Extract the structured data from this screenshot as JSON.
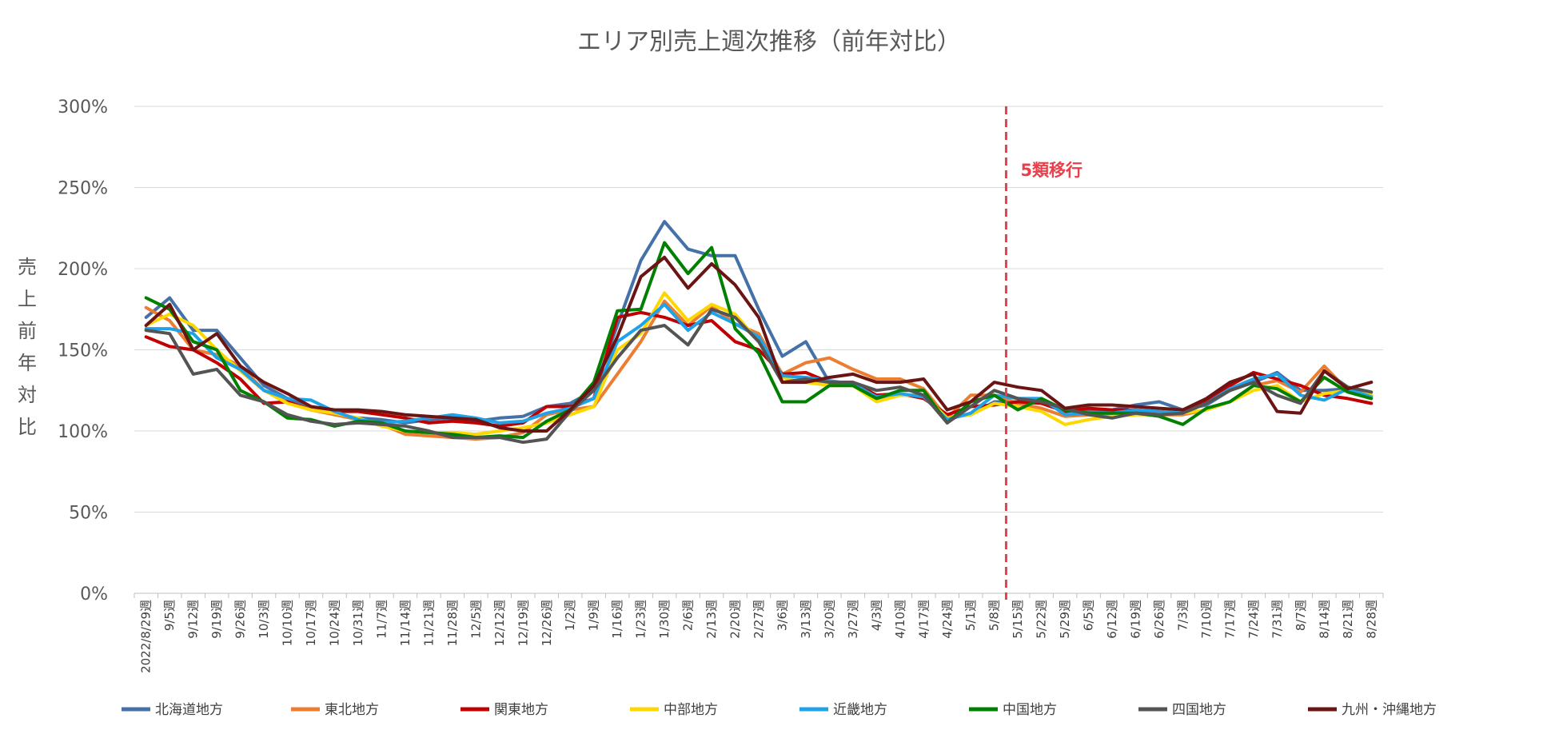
{
  "chart_data": {
    "type": "line",
    "title": "エリア別売上週次推移（前年対比）",
    "ylabel": "売上前年対比",
    "ylim": [
      0,
      300
    ],
    "yticks": [
      "0%",
      "50%",
      "100%",
      "150%",
      "200%",
      "250%",
      "300%"
    ],
    "grid": true,
    "legend_position": "bottom",
    "categories": [
      "2022/8/29週",
      "9/5週",
      "9/12週",
      "9/19週",
      "9/26週",
      "10/3週",
      "10/10週",
      "10/17週",
      "10/24週",
      "10/31週",
      "11/7週",
      "11/14週",
      "11/21週",
      "11/28週",
      "12/5週",
      "12/12週",
      "12/19週",
      "12/26週",
      "1/2週",
      "1/9週",
      "1/16週",
      "1/23週",
      "1/30週",
      "2/6週",
      "2/13週",
      "2/20週",
      "2/27週",
      "3/6週",
      "3/13週",
      "3/20週",
      "3/27週",
      "4/3週",
      "4/10週",
      "4/17週",
      "4/24週",
      "5/1週",
      "5/8週",
      "5/15週",
      "5/22週",
      "5/29週",
      "6/5週",
      "6/12週",
      "6/19週",
      "6/26週",
      "7/3週",
      "7/10週",
      "7/17週",
      "7/24週",
      "7/31週",
      "8/7週",
      "8/14週",
      "8/21週",
      "8/28週"
    ],
    "annotation": {
      "label": "5類移行",
      "category": "5/8週",
      "color": "#e8404a"
    },
    "series": [
      {
        "name": "北海道地方",
        "color": "#4472a8",
        "values": [
          170,
          182,
          162,
          162,
          145,
          128,
          120,
          115,
          110,
          108,
          107,
          105,
          107,
          108,
          106,
          108,
          109,
          115,
          117,
          125,
          165,
          205,
          229,
          212,
          208,
          208,
          175,
          146,
          155,
          130,
          128,
          120,
          122,
          122,
          108,
          110,
          118,
          118,
          118,
          112,
          113,
          113,
          116,
          118,
          113,
          116,
          125,
          130,
          136,
          125,
          125,
          126,
          122
        ]
      },
      {
        "name": "東北地方",
        "color": "#ed7d31",
        "values": [
          176,
          168,
          150,
          147,
          140,
          125,
          118,
          113,
          110,
          107,
          104,
          98,
          97,
          96,
          95,
          96,
          99,
          110,
          113,
          115,
          135,
          155,
          180,
          165,
          177,
          166,
          160,
          135,
          142,
          145,
          138,
          132,
          132,
          126,
          108,
          122,
          122,
          117,
          114,
          109,
          110,
          110,
          112,
          110,
          110,
          113,
          118,
          128,
          131,
          124,
          140,
          125,
          122
        ]
      },
      {
        "name": "関東地方",
        "color": "#c00000",
        "values": [
          158,
          152,
          150,
          142,
          132,
          117,
          118,
          113,
          112,
          112,
          110,
          108,
          105,
          106,
          105,
          103,
          105,
          115,
          115,
          120,
          170,
          173,
          170,
          165,
          168,
          155,
          150,
          135,
          136,
          130,
          130,
          122,
          123,
          120,
          110,
          115,
          116,
          118,
          117,
          112,
          114,
          113,
          113,
          110,
          111,
          118,
          128,
          136,
          132,
          128,
          122,
          120,
          117
        ]
      },
      {
        "name": "中部地方",
        "color": "#ffd700",
        "values": [
          165,
          172,
          165,
          150,
          137,
          125,
          117,
          113,
          111,
          108,
          103,
          100,
          99,
          99,
          98,
          100,
          102,
          105,
          110,
          115,
          150,
          160,
          185,
          168,
          178,
          172,
          155,
          133,
          130,
          128,
          128,
          118,
          122,
          122,
          108,
          110,
          117,
          115,
          112,
          104,
          107,
          109,
          110,
          110,
          111,
          113,
          118,
          125,
          128,
          118,
          123,
          125,
          122
        ]
      },
      {
        "name": "近畿地方",
        "color": "#1fa2e8",
        "values": [
          163,
          163,
          160,
          145,
          138,
          125,
          120,
          119,
          112,
          107,
          105,
          106,
          108,
          110,
          108,
          105,
          106,
          111,
          114,
          120,
          155,
          165,
          178,
          162,
          173,
          166,
          158,
          134,
          133,
          131,
          129,
          121,
          123,
          121,
          107,
          111,
          122,
          120,
          120,
          110,
          111,
          111,
          113,
          112,
          111,
          117,
          126,
          132,
          135,
          122,
          119,
          126,
          121
        ]
      },
      {
        "name": "中国地方",
        "color": "#008000",
        "values": [
          182,
          175,
          155,
          150,
          125,
          118,
          108,
          107,
          103,
          106,
          105,
          100,
          99,
          98,
          96,
          97,
          96,
          106,
          113,
          130,
          174,
          175,
          216,
          197,
          213,
          163,
          148,
          118,
          118,
          128,
          128,
          120,
          125,
          125,
          105,
          118,
          122,
          113,
          120,
          113,
          111,
          111,
          111,
          109,
          104,
          114,
          118,
          128,
          126,
          118,
          133,
          124,
          120
        ]
      },
      {
        "name": "四国地方",
        "color": "#545454",
        "values": [
          162,
          160,
          135,
          138,
          122,
          118,
          110,
          106,
          104,
          105,
          104,
          103,
          100,
          96,
          96,
          96,
          93,
          95,
          112,
          125,
          145,
          162,
          165,
          153,
          175,
          170,
          155,
          130,
          132,
          130,
          130,
          125,
          127,
          122,
          105,
          115,
          125,
          120,
          118,
          114,
          110,
          108,
          111,
          110,
          111,
          117,
          125,
          130,
          122,
          117,
          137,
          127,
          124
        ]
      },
      {
        "name": "九州・沖縄地方",
        "color": "#6b1414",
        "values": [
          165,
          178,
          150,
          160,
          140,
          130,
          123,
          115,
          113,
          113,
          112,
          110,
          109,
          108,
          107,
          102,
          100,
          100,
          113,
          128,
          158,
          195,
          207,
          188,
          203,
          190,
          170,
          130,
          130,
          133,
          135,
          130,
          130,
          132,
          113,
          118,
          130,
          127,
          125,
          114,
          116,
          116,
          115,
          114,
          113,
          120,
          130,
          135,
          112,
          111,
          137,
          126,
          130
        ]
      }
    ]
  }
}
